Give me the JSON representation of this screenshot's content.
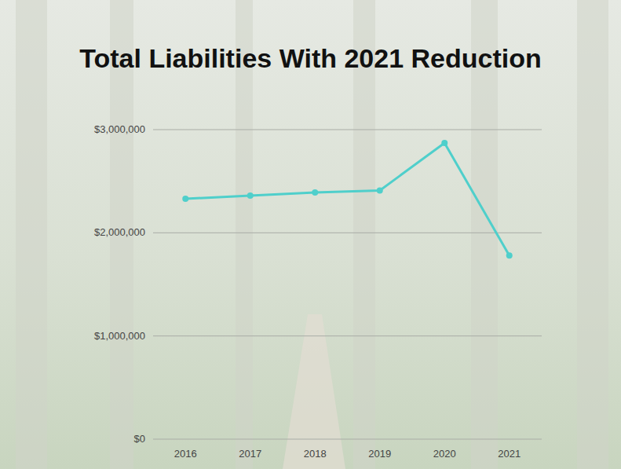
{
  "chart_data": {
    "type": "line",
    "title": "Total Liabilities With 2021 Reduction",
    "categories": [
      "2016",
      "2017",
      "2018",
      "2019",
      "2020",
      "2021"
    ],
    "values": [
      2330000,
      2360000,
      2390000,
      2410000,
      2870000,
      1780000
    ],
    "color": "#4fcfcb",
    "marker": "circle",
    "ylim": [
      0,
      3000000
    ],
    "yticks": [
      {
        "value": 0,
        "label": "$0"
      },
      {
        "value": 1000000,
        "label": "$1,000,000"
      },
      {
        "value": 2000000,
        "label": "$2,000,000"
      },
      {
        "value": 3000000,
        "label": "$3,000,000"
      }
    ],
    "grid": true
  }
}
